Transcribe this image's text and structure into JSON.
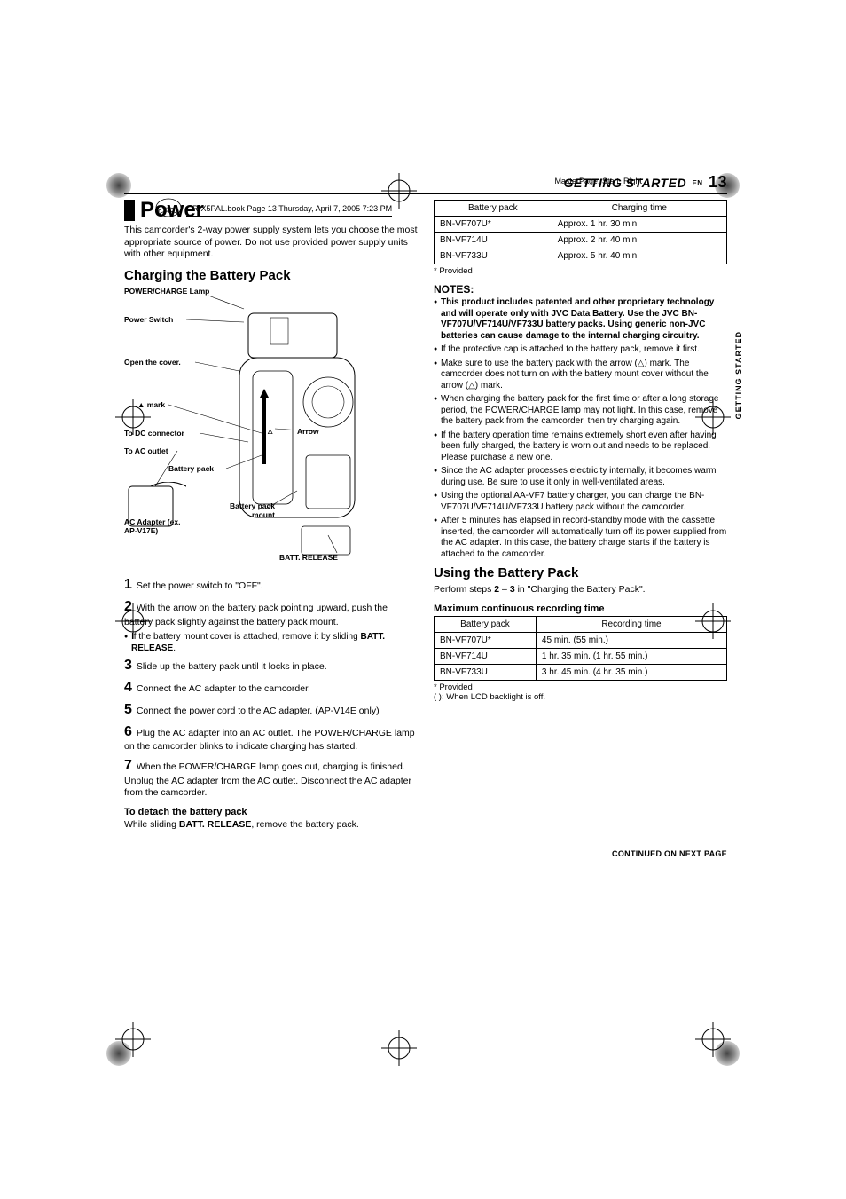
{
  "masterpage": "MasterPage: Start_Right",
  "book_header": "GR-X5PAL.book  Page 13  Thursday, April 7, 2005  7:23 PM",
  "section": {
    "title": "GETTING STARTED",
    "en": "EN",
    "page": "13"
  },
  "side_tab": "GETTING STARTED",
  "left": {
    "h1": "Power",
    "intro": "This camcorder's 2-way power supply system lets you choose the most appropriate source of power. Do not use provided power supply units with other equipment.",
    "h2a": "Charging the Battery Pack",
    "diagram": {
      "power_charge": "POWER/CHARGE Lamp",
      "power_switch": "Power Switch",
      "open_cover": "Open the cover.",
      "mark": "▲ mark",
      "to_dc": "To DC connector",
      "to_ac": "To AC outlet",
      "battery_pack": "Battery pack",
      "ac_adapter": "AC Adapter (ex. AP-V17E)",
      "battery_mount": "Battery pack mount",
      "arrow": "Arrow",
      "batt_release": "BATT. RELEASE"
    },
    "steps": [
      {
        "n": "1",
        "t": "Set the power switch to \"OFF\"."
      },
      {
        "n": "2",
        "t": "With the arrow on the battery pack pointing upward, push the battery pack slightly against the battery pack mount."
      }
    ],
    "step2_bullet": "If the battery mount cover is attached, remove it by sliding BATT. RELEASE.",
    "steps2": [
      {
        "n": "3",
        "t": "Slide up the battery pack until it locks in place."
      },
      {
        "n": "4",
        "t": "Connect the AC adapter to the camcorder."
      },
      {
        "n": "5",
        "t": "Connect the power cord to the AC adapter. (AP-V14E only)"
      },
      {
        "n": "6",
        "t": "Plug the AC adapter into an AC outlet. The POWER/CHARGE lamp on the camcorder blinks to indicate charging has started."
      },
      {
        "n": "7",
        "t": "When the POWER/CHARGE lamp goes out, charging is finished. Unplug the AC adapter from the AC outlet. Disconnect the AC adapter from the camcorder."
      }
    ],
    "detach_h": "To detach the battery pack",
    "detach_t": "While sliding BATT. RELEASE, remove the battery pack."
  },
  "right": {
    "charge_table": {
      "headers": [
        "Battery pack",
        "Charging time"
      ],
      "rows": [
        [
          "BN-VF707U*",
          "Approx. 1 hr. 30 min."
        ],
        [
          "BN-VF714U",
          "Approx. 2 hr. 40 min."
        ],
        [
          "BN-VF733U",
          "Approx. 5 hr. 40 min."
        ]
      ]
    },
    "provided": "*  Provided",
    "notes_h": "NOTES:",
    "notes": [
      {
        "bold": true,
        "t": "This product includes patented and other proprietary technology and will operate only with JVC Data Battery. Use the JVC BN-VF707U/VF714U/VF733U battery packs. Using generic non-JVC batteries can cause damage to the internal charging circuitry."
      },
      {
        "t": "If the protective cap is attached to the battery pack, remove it first."
      },
      {
        "t": "Make sure to use the battery pack with the arrow (△) mark. The camcorder does not turn on with the battery mount cover without the arrow (△) mark."
      },
      {
        "t": "When charging the battery pack for the first time or after a long storage period, the POWER/CHARGE lamp may not light. In this case, remove the battery pack from the camcorder, then try charging again."
      },
      {
        "t": "If the battery operation time remains extremely short even after having been fully charged, the battery is worn out and needs to be replaced. Please purchase a new one."
      },
      {
        "t": "Since the AC adapter processes electricity internally, it becomes warm during use. Be sure to use it only in well-ventilated areas."
      },
      {
        "t": "Using the optional AA-VF7 battery charger, you can charge the BN-VF707U/VF714U/VF733U battery pack without the camcorder."
      },
      {
        "t": "After 5 minutes has elapsed in record-standby mode with the cassette inserted, the camcorder will automatically turn off its power supplied from the AC adapter. In this case, the battery charge starts if the battery is attached to the camcorder."
      }
    ],
    "h2b": "Using the Battery Pack",
    "use_t": "Perform steps 2 – 3 in \"Charging the Battery Pack\".",
    "max_h": "Maximum continuous recording time",
    "rec_table": {
      "headers": [
        "Battery pack",
        "Recording time"
      ],
      "rows": [
        [
          "BN-VF707U*",
          "45 min. (55 min.)"
        ],
        [
          "BN-VF714U",
          "1 hr. 35 min. (1 hr. 55 min.)"
        ],
        [
          "BN-VF733U",
          "3 hr. 45 min. (4 hr. 35 min.)"
        ]
      ]
    },
    "provided2": "*  Provided",
    "paren": "(   ): When LCD backlight is off."
  },
  "cont": "CONTINUED ON NEXT PAGE"
}
